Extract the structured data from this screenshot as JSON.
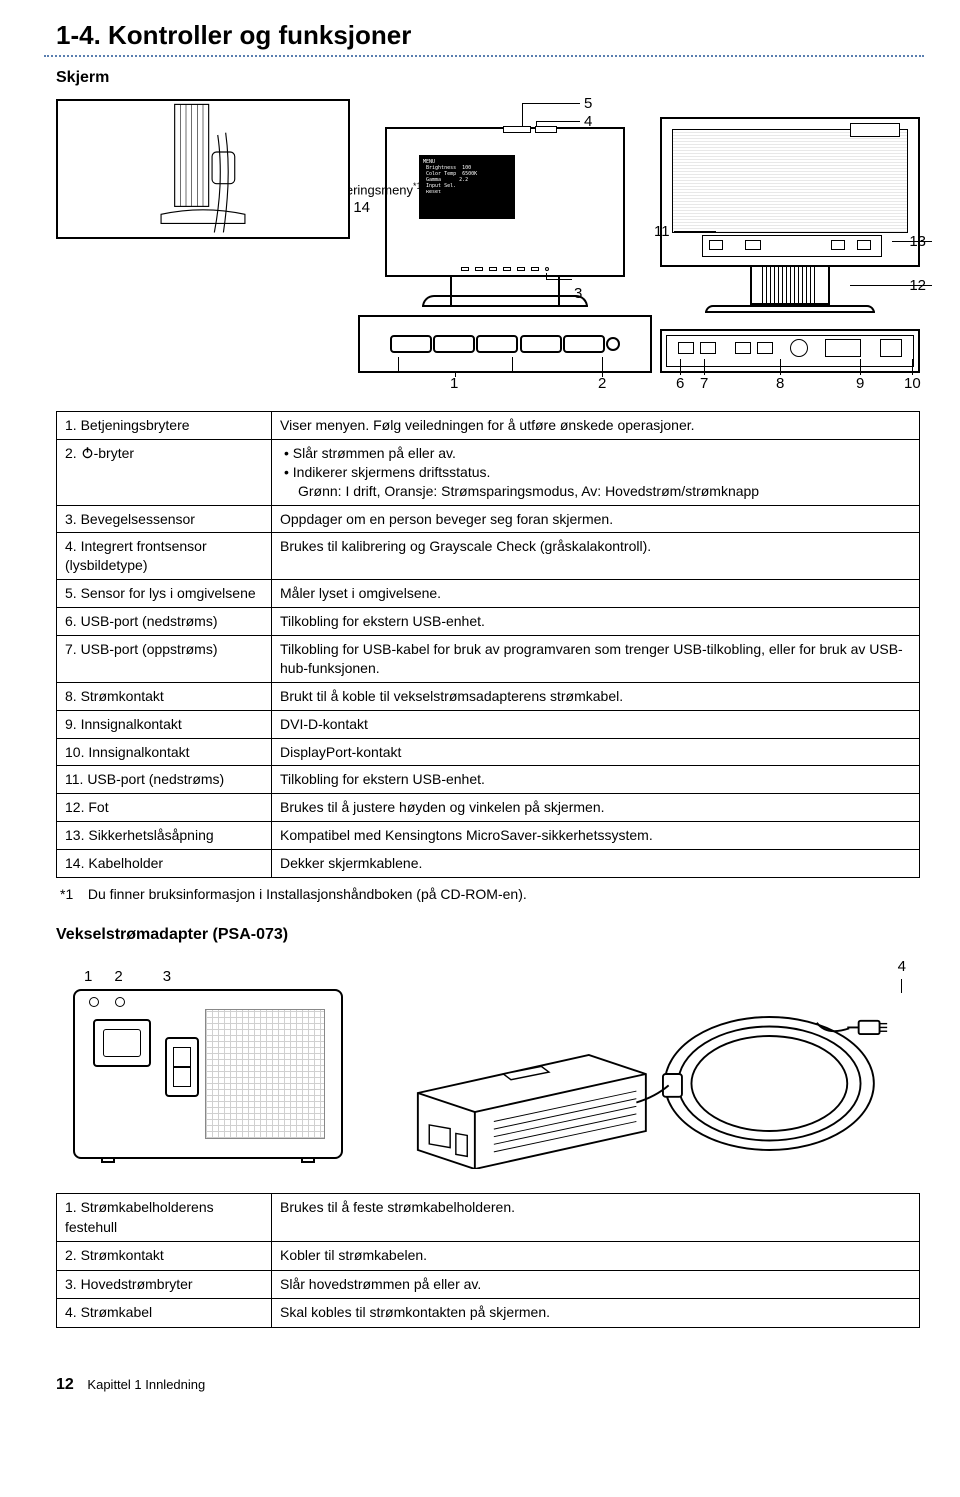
{
  "section_title": "1-4. Kontroller og funksjoner",
  "subheading_skjerm": "Skjerm",
  "adjustment_menu_label": "Justeringsmeny",
  "adjustment_menu_ref": "*1",
  "diag_labels": {
    "n1": "1",
    "n2": "2",
    "n3": "3",
    "n4": "4",
    "n5": "5",
    "n6": "6",
    "n7": "7",
    "n8": "8",
    "n9": "9",
    "n10": "10",
    "n11": "11",
    "n12": "12",
    "n13": "13",
    "n14": "14"
  },
  "controls": [
    {
      "label": "1. Betjeningsbrytere",
      "desc": "Viser menyen. Følg veiledningen for å utføre ønskede operasjoner."
    },
    {
      "label_prefix": "2. ",
      "label_icon": "power",
      "label_suffix": "-bryter",
      "desc_list": [
        "Slår strømmen på eller av.",
        "Indikerer skjermens driftsstatus.",
        "Grønn: I drift, Oransje: Strømsparingsmodus, Av: Hovedstrøm/strømknapp"
      ]
    },
    {
      "label": "3. Bevegelsessensor",
      "desc": "Oppdager om en person beveger seg foran skjermen."
    },
    {
      "label": "4. Integrert frontsensor (lysbildetype)",
      "desc": "Brukes til kalibrering og Grayscale Check (gråskalakontroll)."
    },
    {
      "label": "5. Sensor for lys i omgivelsene",
      "desc": "Måler lyset i omgivelsene."
    },
    {
      "label": "6. USB-port (nedstrøms)",
      "desc": "Tilkobling for ekstern USB-enhet."
    },
    {
      "label": "7. USB-port (oppstrøms)",
      "desc": "Tilkobling for USB-kabel for bruk av programvaren som trenger USB-tilkobling, eller for bruk av USB-hub-funksjonen."
    },
    {
      "label": "8. Strømkontakt",
      "desc": "Brukt til å koble til vekselstrømsadapterens strømkabel."
    },
    {
      "label": "9. Innsignalkontakt",
      "desc": "DVI-D-kontakt"
    },
    {
      "label": "10. Innsignalkontakt",
      "desc": "DisplayPort-kontakt"
    },
    {
      "label": "11. USB-port (nedstrøms)",
      "desc": "Tilkobling for ekstern USB-enhet."
    },
    {
      "label": "12. Fot",
      "desc": "Brukes til å justere høyden og vinkelen på skjermen."
    },
    {
      "label": "13. Sikkerhetslåsåpning",
      "desc": "Kompatibel med Kensingtons MicroSaver-sikkerhetssystem."
    },
    {
      "label": "14. Kabelholder",
      "desc": "Dekker skjermkablene."
    }
  ],
  "footnote": {
    "marker": "*1",
    "text": "Du finner bruksinformasjon i Installasjonshåndboken (på CD-ROM-en)."
  },
  "adapter_heading": "Vekselstrømadapter (PSA-073)",
  "adapter_labels": {
    "n1": "1",
    "n2": "2",
    "n3": "3",
    "n4": "4"
  },
  "adapter_table": [
    {
      "label": "1. Strømkabelholderens festehull",
      "desc": "Brukes til å feste strømkabelholderen."
    },
    {
      "label": "2. Strømkontakt",
      "desc": "Kobler til strømkabelen."
    },
    {
      "label": "3. Hovedstrømbryter",
      "desc": "Slår hovedstrømmen på eller av."
    },
    {
      "label": "4. Strømkabel",
      "desc": "Skal kobles til strømkontakten på skjermen."
    }
  ],
  "page_footer": {
    "num": "12",
    "text": "Kapittel 1 Innledning"
  },
  "colors": {
    "dotted": "#5a7fb0",
    "text": "#000000",
    "bg": "#ffffff"
  }
}
